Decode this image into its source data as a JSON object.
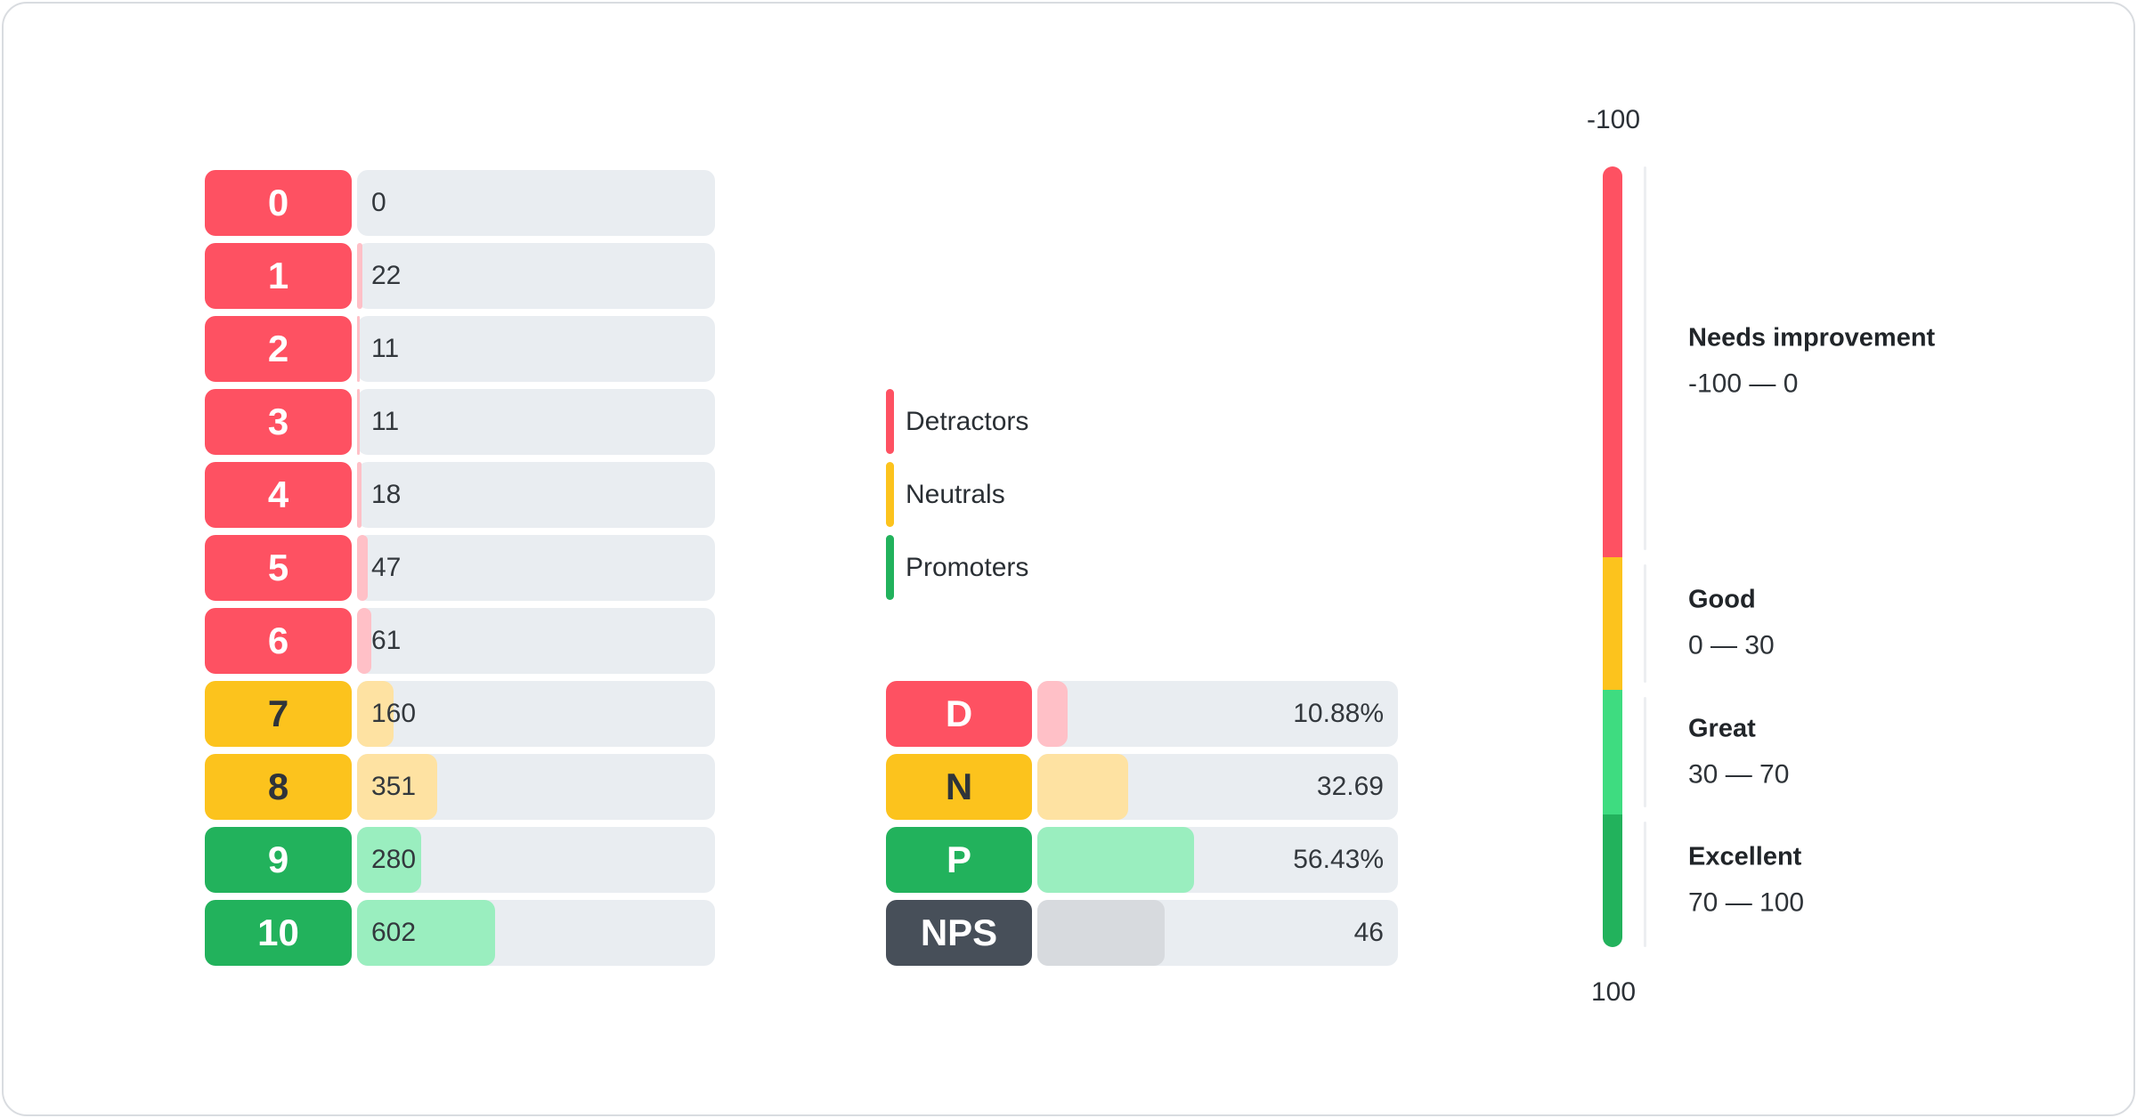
{
  "colors": {
    "detractor": "#fe5162",
    "detractor_light": "#ffc0c7",
    "neutral": "#fcc31d",
    "neutral_light": "#fee2a2",
    "promoter": "#22b25c",
    "promoter_bright": "#3edc80",
    "promoter_light": "#9aeebf",
    "nps": "#474f59",
    "nps_light": "#d7dade",
    "track": "#e9edf1",
    "text_dark": "#2f343a",
    "text_on_dark": "#ffffff"
  },
  "legend": {
    "items": [
      {
        "label": "Detractors",
        "color_key": "detractor"
      },
      {
        "label": "Neutrals",
        "color_key": "neutral"
      },
      {
        "label": "Promoters",
        "color_key": "promoter"
      }
    ]
  },
  "chart_data": [
    {
      "id": "score_distribution",
      "type": "bar",
      "orientation": "horizontal",
      "categories": [
        "0",
        "1",
        "2",
        "3",
        "4",
        "5",
        "6",
        "7",
        "8",
        "9",
        "10"
      ],
      "values": [
        0,
        22,
        11,
        11,
        18,
        47,
        61,
        160,
        351,
        280,
        602
      ],
      "groups": [
        "detractor",
        "detractor",
        "detractor",
        "detractor",
        "detractor",
        "detractor",
        "detractor",
        "neutral",
        "neutral",
        "promoter",
        "promoter"
      ]
    },
    {
      "id": "nps_summary",
      "type": "bar",
      "orientation": "horizontal",
      "scale_max": 130,
      "rows": [
        {
          "label": "D",
          "value": 10.88,
          "display": "10.88%",
          "group": "detractor"
        },
        {
          "label": "N",
          "value": 32.69,
          "display": "32.69",
          "group": "neutral"
        },
        {
          "label": "P",
          "value": 56.43,
          "display": "56.43%",
          "group": "promoter"
        },
        {
          "label": "NPS",
          "value": 46,
          "display": "46",
          "group": "nps"
        }
      ]
    },
    {
      "id": "nps_gauge",
      "type": "gauge",
      "axis": {
        "top_label": "-100",
        "bottom_label": "100",
        "min": -100,
        "max": 100
      },
      "segment_fractions": [
        0.5,
        0.17,
        0.16,
        0.17
      ],
      "ranges": [
        {
          "title": "Needs improvement",
          "range_label": "-100 — 0",
          "from": -100,
          "to": 0,
          "color_key": "detractor"
        },
        {
          "title": "Good",
          "range_label": "0 — 30",
          "from": 0,
          "to": 30,
          "color_key": "neutral"
        },
        {
          "title": "Great",
          "range_label": "30 — 70",
          "from": 30,
          "to": 70,
          "color_key": "promoter_bright"
        },
        {
          "title": "Excellent",
          "range_label": "70 — 100",
          "from": 70,
          "to": 100,
          "color_key": "promoter"
        }
      ]
    }
  ]
}
